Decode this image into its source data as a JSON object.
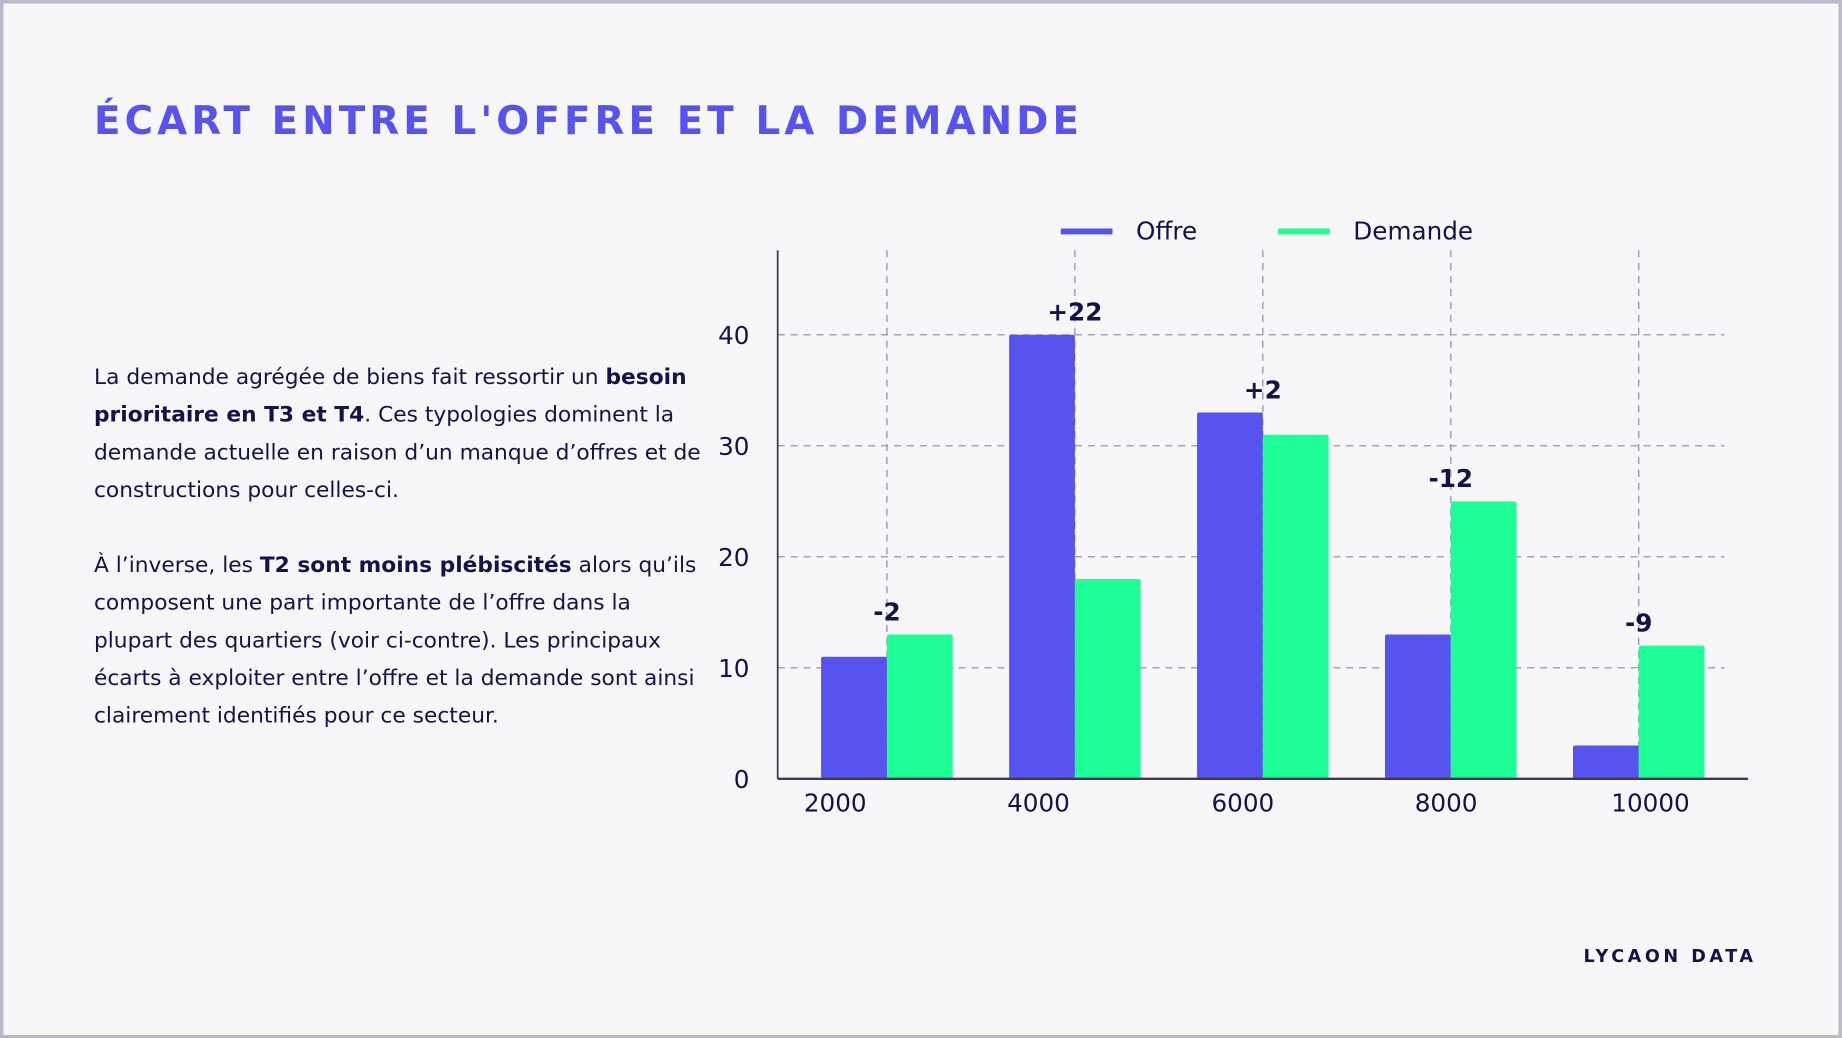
{
  "title": "ÉCART ENTRE L'OFFRE ET LA DEMANDE",
  "text": {
    "p1_a": "La demande agrégée de biens fait ressortir un ",
    "p1_b": "besoin prioritaire en T3 et T4",
    "p1_c": ". Ces typologies dominent la demande actuelle en raison d’un manque d’offres et de constructions pour celles-ci.",
    "p2_a": "À l’inverse, les ",
    "p2_b": "T2 sont moins plébiscités",
    "p2_c": " alors qu’ils composent une part importante de l’offre dans la plupart des quartiers (voir ci-contre). Les principaux écarts à exploiter entre l’offre et la demande sont ainsi clairement identifiés pour ce secteur."
  },
  "brand": "LYCAON DATA",
  "chart_data": {
    "type": "bar",
    "categories": [
      "2000",
      "4000",
      "6000",
      "8000",
      "10000"
    ],
    "series": [
      {
        "name": "Offre",
        "values": [
          11,
          40,
          33,
          13,
          3
        ],
        "color": "#5853ee"
      },
      {
        "name": "Demande",
        "values": [
          13,
          18,
          31,
          25,
          12
        ],
        "color": "#1efe96"
      }
    ],
    "data_labels": [
      "-2",
      "+22",
      "+2",
      "-12",
      "-9"
    ],
    "yticks": [
      "0",
      "10",
      "20",
      "30",
      "40"
    ],
    "ylim": [
      0,
      47
    ],
    "grid": true,
    "legend": "top"
  }
}
